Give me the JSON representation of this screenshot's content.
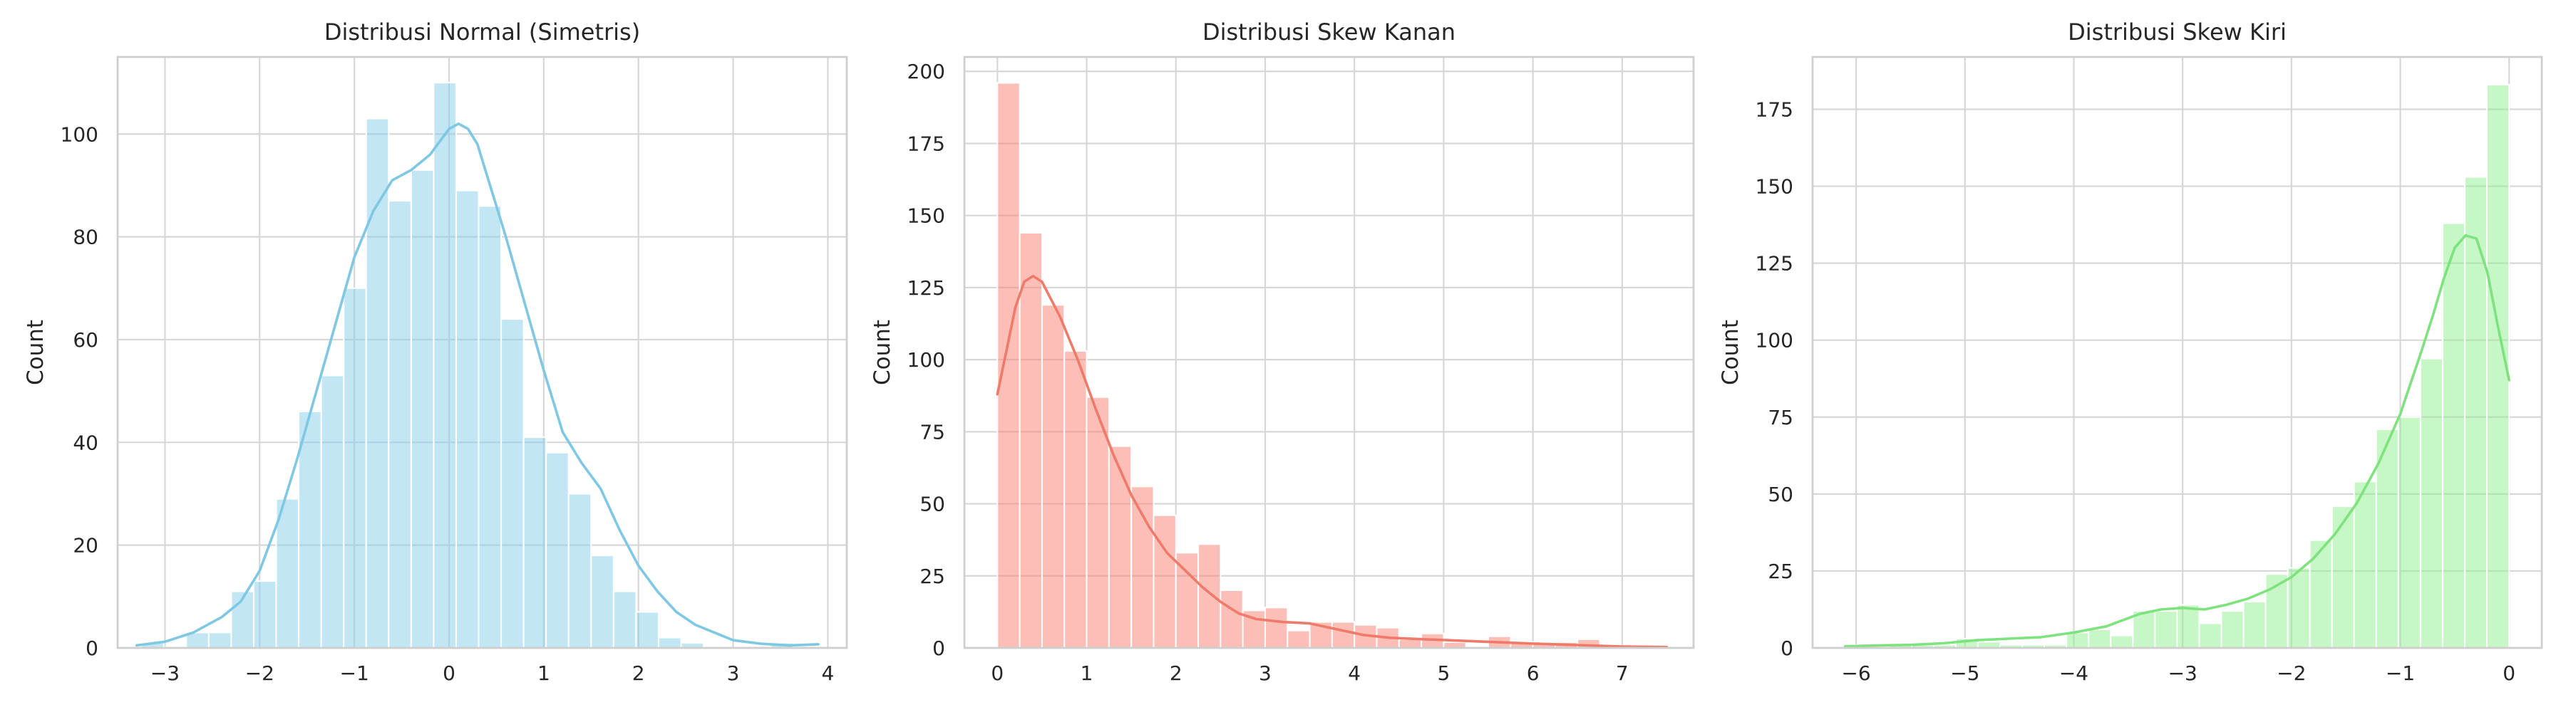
{
  "chart_data": [
    {
      "type": "histogram",
      "title": "Distribusi Normal (Simetris)",
      "xlabel": "",
      "ylabel": "Count",
      "xlim": [
        -3.5,
        4.2
      ],
      "ylim": [
        0,
        115
      ],
      "xticks": [
        -3,
        -2,
        -1,
        0,
        1,
        2,
        3,
        4
      ],
      "yticks": [
        0,
        20,
        40,
        60,
        80,
        100
      ],
      "grid": true,
      "bar_color": "#87ceeb",
      "line_color": "#7ec8e3",
      "bin_start": -3.25,
      "bin_width": 0.2375,
      "counts": [
        1,
        0,
        3,
        3,
        11,
        13,
        29,
        46,
        53,
        70,
        103,
        87,
        93,
        110,
        89,
        86,
        64,
        41,
        38,
        30,
        18,
        11,
        7,
        2,
        1,
        0,
        0,
        0,
        1
      ],
      "kde": {
        "x": [
          -3.3,
          -3.0,
          -2.7,
          -2.4,
          -2.2,
          -2.0,
          -1.8,
          -1.6,
          -1.4,
          -1.2,
          -1.0,
          -0.8,
          -0.6,
          -0.4,
          -0.2,
          0.0,
          0.1,
          0.2,
          0.3,
          0.4,
          0.6,
          0.8,
          1.0,
          1.2,
          1.4,
          1.6,
          1.8,
          2.0,
          2.2,
          2.4,
          2.6,
          2.8,
          3.0,
          3.3,
          3.6,
          3.9
        ],
        "y": [
          0.5,
          1.2,
          3,
          6,
          9,
          15,
          25,
          37,
          50,
          63,
          76,
          85,
          91,
          93,
          96,
          101,
          102,
          101,
          98,
          92,
          80,
          67,
          54,
          42,
          36,
          31,
          23,
          16,
          11,
          7,
          4.5,
          3,
          1.5,
          0.8,
          0.5,
          0.7
        ]
      }
    },
    {
      "type": "histogram",
      "title": "Distribusi Skew Kanan",
      "xlabel": "",
      "ylabel": "Count",
      "xlim": [
        -0.37,
        7.8
      ],
      "ylim": [
        0,
        205
      ],
      "xticks": [
        0,
        1,
        2,
        3,
        4,
        5,
        6,
        7
      ],
      "yticks": [
        0,
        25,
        50,
        75,
        100,
        125,
        150,
        175,
        200
      ],
      "grid": true,
      "bar_color": "#fa8072",
      "line_color": "#f07a6a",
      "bin_start": 0,
      "bin_width": 0.25,
      "counts": [
        196,
        144,
        119,
        103,
        87,
        70,
        56,
        46,
        33,
        36,
        20,
        13,
        14,
        6,
        9,
        9,
        8,
        7,
        3,
        5,
        2,
        0,
        4,
        2,
        2,
        2,
        3,
        0,
        0,
        0
      ],
      "kde": {
        "x": [
          0,
          0.1,
          0.2,
          0.3,
          0.4,
          0.5,
          0.7,
          0.9,
          1.1,
          1.3,
          1.5,
          1.7,
          1.9,
          2.1,
          2.3,
          2.5,
          2.7,
          2.9,
          3.2,
          3.5,
          3.8,
          4.1,
          4.4,
          4.8,
          5.2,
          5.6,
          6.0,
          6.5,
          7.0,
          7.5
        ],
        "y": [
          88,
          103,
          118,
          127,
          129,
          127,
          115,
          100,
          83,
          67,
          53,
          42,
          33,
          27,
          21,
          16,
          12,
          10,
          9,
          8.5,
          6.5,
          4.5,
          3.5,
          3,
          2.5,
          2,
          1.5,
          1,
          0.5,
          0.3
        ]
      }
    },
    {
      "type": "histogram",
      "title": "Distribusi Skew Kiri",
      "xlabel": "",
      "ylabel": "Count",
      "xlim": [
        -6.4,
        0.3
      ],
      "ylim": [
        0,
        192
      ],
      "xticks": [
        -6,
        -5,
        -4,
        -3,
        -2,
        -1,
        0
      ],
      "yticks": [
        0,
        25,
        50,
        75,
        100,
        125,
        150,
        175
      ],
      "grid": true,
      "bar_color": "#90ee90",
      "line_color": "#7ee37e",
      "bin_start": -6.1,
      "bin_width": 0.2033,
      "counts": [
        1,
        0,
        1,
        1,
        1,
        3,
        2,
        1,
        1,
        1,
        5,
        6,
        4,
        12,
        12,
        14,
        8,
        12,
        15,
        24,
        26,
        35,
        46,
        54,
        71,
        75,
        94,
        138,
        153,
        183
      ],
      "kde": {
        "x": [
          -6.1,
          -5.8,
          -5.5,
          -5.2,
          -4.9,
          -4.6,
          -4.3,
          -4.0,
          -3.7,
          -3.4,
          -3.2,
          -3.0,
          -2.8,
          -2.6,
          -2.4,
          -2.2,
          -2.0,
          -1.8,
          -1.6,
          -1.4,
          -1.2,
          -1.0,
          -0.8,
          -0.7,
          -0.6,
          -0.5,
          -0.4,
          -0.3,
          -0.2,
          -0.1,
          0.0
        ],
        "y": [
          0.5,
          0.8,
          1,
          1.5,
          2.5,
          3,
          3.5,
          5,
          7,
          11,
          12.5,
          13,
          12.5,
          14,
          16,
          19,
          23,
          29,
          37,
          47,
          60,
          76,
          97,
          108,
          120,
          130,
          134,
          133,
          122,
          104,
          87
        ]
      }
    }
  ]
}
